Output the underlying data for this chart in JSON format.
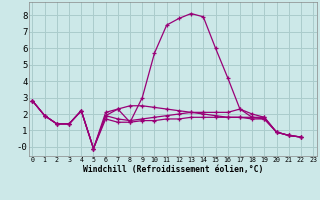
{
  "background_color": "#cce8e8",
  "grid_color": "#aacccc",
  "line_color": "#990077",
  "xlabel": "Windchill (Refroidissement éolien,°C)",
  "ylim": [
    -0.55,
    8.8
  ],
  "xlim": [
    -0.3,
    23.3
  ],
  "yticks": [
    0,
    1,
    2,
    3,
    4,
    5,
    6,
    7,
    8
  ],
  "xticks": [
    0,
    1,
    2,
    3,
    4,
    5,
    6,
    7,
    8,
    9,
    10,
    11,
    12,
    13,
    14,
    15,
    16,
    17,
    18,
    19,
    20,
    21,
    22,
    23
  ],
  "yticklabels": [
    "-0",
    "1",
    "2",
    "3",
    "4",
    "5",
    "6",
    "7",
    "8"
  ],
  "series": [
    [
      2.8,
      1.9,
      1.4,
      1.4,
      2.2,
      -0.1,
      1.9,
      2.3,
      1.5,
      3.0,
      5.7,
      7.4,
      7.8,
      8.1,
      7.9,
      6.0,
      4.2,
      2.3,
      1.8,
      1.8,
      0.9,
      0.7,
      0.6
    ],
    [
      2.8,
      1.9,
      1.4,
      1.4,
      2.2,
      -0.1,
      1.9,
      1.7,
      1.6,
      1.7,
      1.8,
      1.9,
      2.0,
      2.1,
      2.1,
      2.1,
      2.1,
      2.3,
      2.0,
      1.8,
      0.9,
      0.7,
      0.6
    ],
    [
      2.8,
      1.9,
      1.4,
      1.4,
      2.2,
      -0.1,
      2.1,
      2.3,
      2.5,
      2.5,
      2.4,
      2.3,
      2.2,
      2.1,
      2.0,
      1.9,
      1.8,
      1.8,
      1.7,
      1.7,
      0.9,
      0.7,
      0.6
    ],
    [
      2.8,
      1.9,
      1.4,
      1.4,
      2.2,
      -0.1,
      1.7,
      1.5,
      1.5,
      1.6,
      1.6,
      1.7,
      1.7,
      1.8,
      1.8,
      1.8,
      1.8,
      1.8,
      1.8,
      1.7,
      0.9,
      0.7,
      0.6
    ]
  ]
}
